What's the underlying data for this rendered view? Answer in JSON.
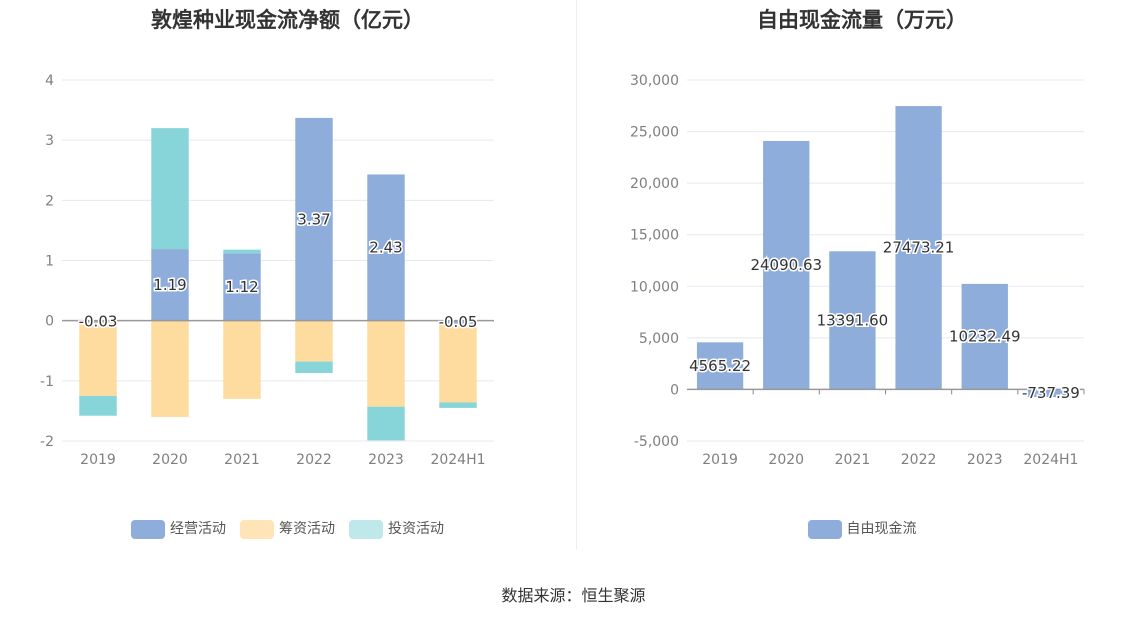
{
  "chart_data": [
    {
      "type": "bar",
      "stacked": true,
      "title": "敦煌种业现金流净额（亿元）",
      "categories": [
        "2019",
        "2020",
        "2021",
        "2022",
        "2023",
        "2024H1"
      ],
      "ylim": [
        -2,
        4
      ],
      "yticks": [
        "4",
        "3",
        "2",
        "1",
        "0",
        "-1",
        "-2"
      ],
      "ytick_values": [
        4,
        3,
        2,
        1,
        0,
        -1,
        -2
      ],
      "grid": true,
      "legend_position": "bottom",
      "series": [
        {
          "name": "经营活动",
          "color": "#8eaddb",
          "values": [
            -0.03,
            1.19,
            1.12,
            3.37,
            2.43,
            -0.05
          ],
          "labels": [
            "-0.03",
            "1.19",
            "1.12",
            "3.37",
            "2.43",
            "-0.05"
          ]
        },
        {
          "name": "筹资活动",
          "color": "#fedb9e",
          "values": [
            -1.22,
            -1.6,
            -1.3,
            -0.68,
            -1.43,
            -1.31
          ],
          "labels": []
        },
        {
          "name": "投资活动",
          "color": "#88d5d9",
          "values": [
            -0.33,
            2.01,
            0.06,
            -0.19,
            -0.56,
            -0.09
          ],
          "labels": []
        }
      ]
    },
    {
      "type": "bar",
      "title": "自由现金流量（万元）",
      "categories": [
        "2019",
        "2020",
        "2021",
        "2022",
        "2023",
        "2024H1"
      ],
      "ylim": [
        -5000,
        30000
      ],
      "yticks": [
        "30,000",
        "25,000",
        "20,000",
        "15,000",
        "10,000",
        "5,000",
        "0",
        "-5,000"
      ],
      "ytick_values": [
        30000,
        25000,
        20000,
        15000,
        10000,
        5000,
        0,
        -5000
      ],
      "grid": true,
      "legend_position": "bottom",
      "series": [
        {
          "name": "自由现金流",
          "color": "#8eaddb",
          "values": [
            4565.22,
            24090.63,
            13391.6,
            27473.21,
            10232.49,
            -737.39
          ],
          "labels": [
            "4565.22",
            "24090.63",
            "13391.60",
            "27473.21",
            "10232.49",
            "-737.39"
          ]
        }
      ]
    }
  ],
  "footer": {
    "source": "数据来源：恒生聚源"
  }
}
